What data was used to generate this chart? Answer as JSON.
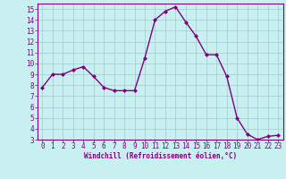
{
  "x": [
    0,
    1,
    2,
    3,
    4,
    5,
    6,
    7,
    8,
    9,
    10,
    11,
    12,
    13,
    14,
    15,
    16,
    17,
    18,
    19,
    20,
    21,
    22,
    23
  ],
  "y": [
    7.8,
    9.0,
    9.0,
    9.4,
    9.7,
    8.8,
    7.8,
    7.5,
    7.5,
    7.5,
    10.5,
    14.0,
    14.8,
    15.2,
    13.8,
    12.5,
    10.8,
    10.8,
    8.8,
    5.0,
    3.5,
    3.0,
    3.3,
    3.4
  ],
  "line_color": "#800080",
  "marker": "D",
  "marker_size": 2.0,
  "line_width": 1.0,
  "bg_color": "#c8f0f0",
  "grid_color": "#a0cccc",
  "xlabel": "Windchill (Refroidissement éolien,°C)",
  "xlabel_color": "#800080",
  "tick_color": "#800080",
  "ylim": [
    3,
    15.5
  ],
  "xlim": [
    -0.5,
    23.5
  ],
  "yticks": [
    3,
    4,
    5,
    6,
    7,
    8,
    9,
    10,
    11,
    12,
    13,
    14,
    15
  ],
  "xticks": [
    0,
    1,
    2,
    3,
    4,
    5,
    6,
    7,
    8,
    9,
    10,
    11,
    12,
    13,
    14,
    15,
    16,
    17,
    18,
    19,
    20,
    21,
    22,
    23
  ],
  "spine_color": "#800080",
  "tick_fontsize": 5.5,
  "xlabel_fontsize": 5.5
}
